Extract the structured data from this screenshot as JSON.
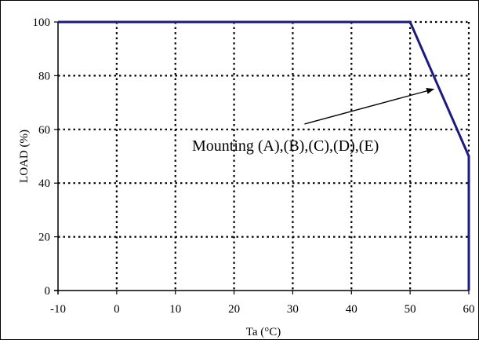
{
  "chart_data": {
    "type": "line",
    "xlabel": "Ta (°C)",
    "ylabel": "LOAD (%)",
    "xlim": [
      -10,
      60
    ],
    "ylim": [
      0,
      100
    ],
    "x_ticks": [
      -10,
      0,
      10,
      20,
      30,
      40,
      50,
      60
    ],
    "y_ticks": [
      0,
      20,
      40,
      60,
      80,
      100
    ],
    "grid": true,
    "series": [
      {
        "x": [
          -10,
          50,
          60,
          60
        ],
        "y": [
          100,
          100,
          50,
          0
        ],
        "color": "#1a1a80"
      }
    ],
    "annotation": {
      "text": "Mounting (A),(B),(C),(D),(E)",
      "arrow_tail": [
        32,
        62
      ],
      "arrow_head": [
        54,
        75
      ]
    }
  }
}
